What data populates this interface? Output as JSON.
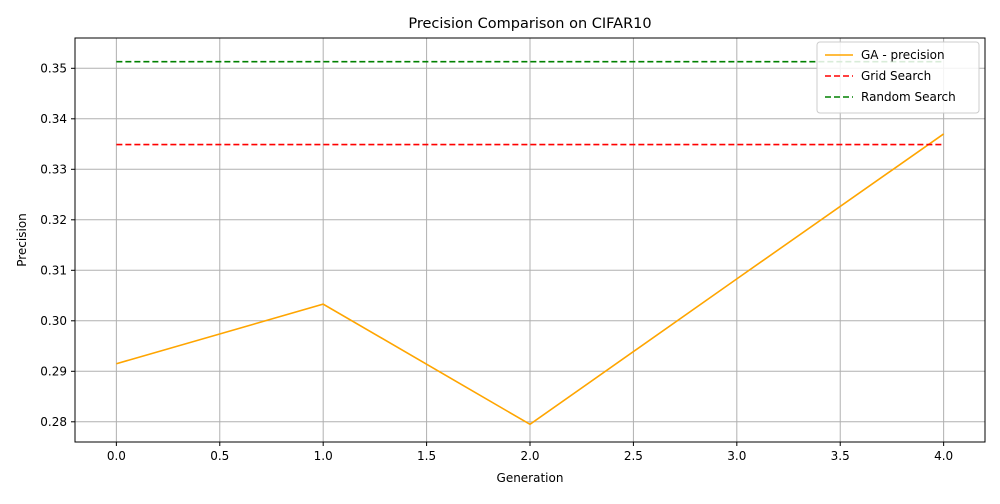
{
  "chart_data": {
    "type": "line",
    "title": "Precision Comparison on CIFAR10",
    "xlabel": "Generation",
    "ylabel": "Precision",
    "xlim": [
      -0.2,
      4.2
    ],
    "ylim": [
      0.276,
      0.356
    ],
    "x_ticks": [
      0.0,
      0.5,
      1.0,
      1.5,
      2.0,
      2.5,
      3.0,
      3.5,
      4.0
    ],
    "x_tick_labels": [
      "0.0",
      "0.5",
      "1.0",
      "1.5",
      "2.0",
      "2.5",
      "3.0",
      "3.5",
      "4.0"
    ],
    "y_ticks": [
      0.28,
      0.29,
      0.3,
      0.31,
      0.32,
      0.33,
      0.34,
      0.35
    ],
    "y_tick_labels": [
      "0.28",
      "0.29",
      "0.30",
      "0.31",
      "0.32",
      "0.33",
      "0.34",
      "0.35"
    ],
    "grid": true,
    "legend_position": "top-right",
    "x": [
      0,
      1,
      2,
      3,
      4
    ],
    "series": [
      {
        "name": "GA - precision",
        "values": [
          0.2915,
          0.3033,
          0.2795,
          0.3083,
          0.337
        ],
        "color": "#ffa500",
        "style": "solid"
      },
      {
        "name": "Grid Search",
        "values": [
          0.3349,
          0.3349,
          0.3349,
          0.3349,
          0.3349
        ],
        "color": "#ff0000",
        "style": "dashed"
      },
      {
        "name": "Random Search",
        "values": [
          0.3513,
          0.3513,
          0.3513,
          0.3513,
          0.3513
        ],
        "color": "#008000",
        "style": "dashed"
      }
    ]
  }
}
